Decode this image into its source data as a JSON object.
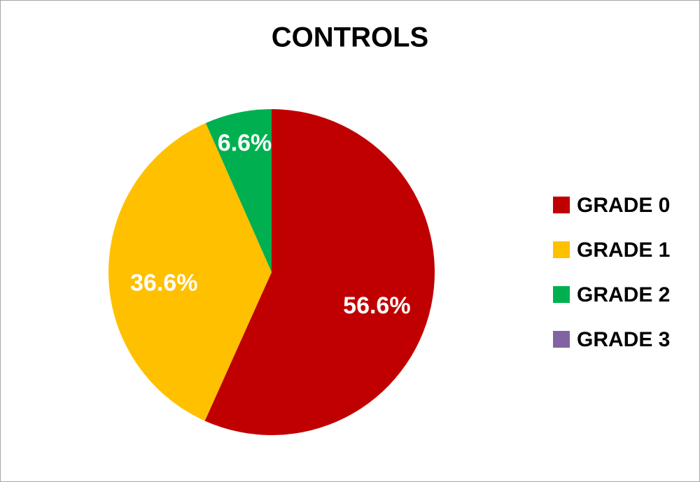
{
  "chart_data": {
    "type": "pie",
    "title": "CONTROLS",
    "categories": [
      "GRADE 0",
      "GRADE 1",
      "GRADE 2",
      "GRADE 3"
    ],
    "values": [
      56.6,
      36.6,
      6.6,
      0
    ],
    "value_labels": [
      "56.6%",
      "36.6%",
      "6.6%",
      null
    ],
    "colors": [
      "#c00000",
      "#ffc000",
      "#00b050",
      "#8064a2"
    ],
    "legend": "right"
  }
}
